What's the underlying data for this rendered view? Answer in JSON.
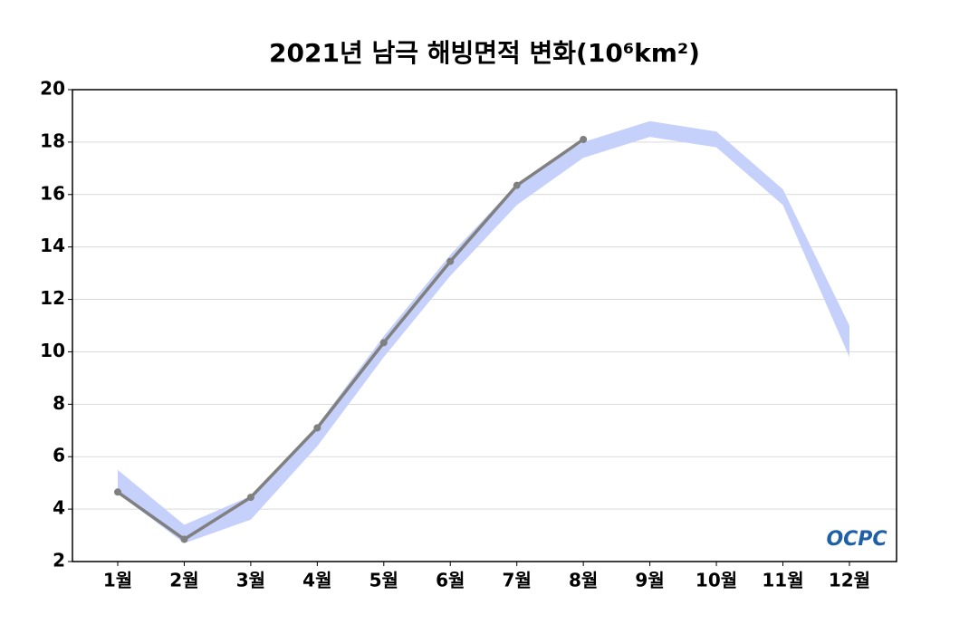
{
  "chart_data": {
    "type": "line",
    "title": "2021년 남극 해빙면적 변화(10⁶km²)",
    "categories": [
      "1월",
      "2월",
      "3월",
      "4월",
      "5월",
      "6월",
      "7월",
      "8월",
      "9월",
      "10월",
      "11월",
      "12월"
    ],
    "series": [
      {
        "color": "#808080",
        "values": [
          4.65,
          2.85,
          4.45,
          7.1,
          10.35,
          13.45,
          16.35,
          18.1,
          null,
          null,
          null,
          null
        ]
      }
    ],
    "band": {
      "color": "#c5d0fb",
      "upper": [
        5.5,
        3.4,
        4.5,
        7.2,
        10.6,
        13.7,
        16.4,
        18.0,
        18.8,
        18.4,
        16.2,
        11.0
      ],
      "lower": [
        4.6,
        2.7,
        3.6,
        6.4,
        9.8,
        12.9,
        15.6,
        17.4,
        18.2,
        17.8,
        15.6,
        9.8
      ]
    },
    "ylim": [
      2,
      20
    ],
    "yticks": [
      2,
      4,
      6,
      8,
      10,
      12,
      14,
      16,
      18,
      20
    ],
    "grid": true,
    "logo": "OCPC"
  }
}
